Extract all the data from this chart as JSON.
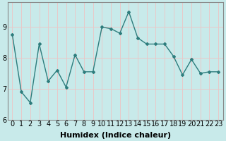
{
  "x": [
    0,
    1,
    2,
    3,
    4,
    5,
    6,
    7,
    8,
    9,
    10,
    11,
    12,
    13,
    14,
    15,
    16,
    17,
    18,
    19,
    20,
    21,
    22,
    23
  ],
  "y": [
    8.75,
    6.9,
    6.55,
    8.45,
    7.25,
    7.6,
    7.05,
    8.1,
    7.55,
    7.55,
    9.0,
    8.95,
    8.8,
    9.5,
    8.65,
    8.45,
    8.45,
    8.45,
    8.05,
    7.45,
    7.95,
    7.5,
    7.55,
    7.55
  ],
  "xlabel": "Humidex (Indice chaleur)",
  "ylim": [
    6,
    9.8
  ],
  "xlim": [
    -0.5,
    23.5
  ],
  "yticks": [
    6,
    7,
    8,
    9
  ],
  "xticks": [
    0,
    1,
    2,
    3,
    4,
    5,
    6,
    7,
    8,
    9,
    10,
    11,
    12,
    13,
    14,
    15,
    16,
    17,
    18,
    19,
    20,
    21,
    22,
    23
  ],
  "line_color": "#2e7d7d",
  "marker": "D",
  "marker_size": 2.0,
  "bg_color": "#c8eaea",
  "grid_color": "#e8c8c8",
  "axis_color": "#888888",
  "xlabel_fontsize": 8,
  "tick_fontsize": 7
}
